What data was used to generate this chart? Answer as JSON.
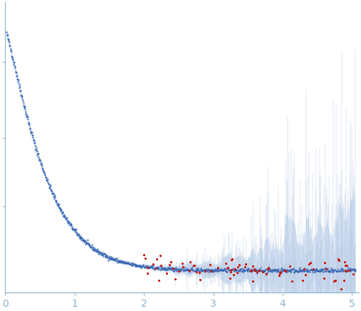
{
  "xlim": [
    0,
    5.1
  ],
  "ylim": [
    -0.6,
    8.8
  ],
  "x_ticks": [
    0,
    1,
    2,
    3,
    4,
    5
  ],
  "background_color": "#ffffff",
  "blue_dot_color": "#3060b0",
  "red_dot_color": "#cc1100",
  "error_band_color": "#c5d8ee",
  "error_line_color": "#a8c0e0",
  "spine_color": "#8ab0cc",
  "tick_color": "#8ab0cc",
  "seed": 42,
  "n_points": 900,
  "n_outliers": 85
}
